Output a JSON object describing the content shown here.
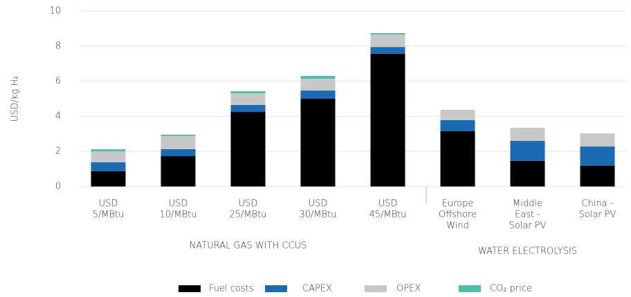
{
  "chart_data": {
    "type": "stacked_bar",
    "y_label": "USD/kg H₂",
    "groups": [
      {
        "name": "NATURAL GAS WITH CCUS",
        "categories": [
          [
            "USD",
            "5/MBtu"
          ],
          [
            "USD",
            "10/MBtu"
          ],
          [
            "USD",
            "25/MBtu"
          ],
          [
            "USD",
            "30/MBtu"
          ],
          [
            "USD",
            "45/MBtu"
          ]
        ]
      },
      {
        "name": "WATER ELECTROLYSIS",
        "categories": [
          [
            "Europe",
            "Offshore",
            "Wind"
          ],
          [
            "Middle",
            "East -",
            "Solar PV"
          ],
          [
            "China -",
            "Solar PV"
          ]
        ]
      }
    ],
    "series": [
      {
        "name": "Fuel costs",
        "color": "#000000",
        "values": [
          0.87,
          1.73,
          4.25,
          5.0,
          7.56,
          3.15,
          1.46,
          1.18
        ]
      },
      {
        "name": "CAPEX",
        "color": "#1a6ab4",
        "values": [
          0.51,
          0.4,
          0.4,
          0.47,
          0.39,
          0.63,
          1.14,
          1.1
        ]
      },
      {
        "name": "OPEX",
        "color": "#c8c8c8",
        "values": [
          0.62,
          0.74,
          0.66,
          0.67,
          0.71,
          0.59,
          0.75,
          0.75
        ]
      },
      {
        "name": "CO₂ price",
        "color": "#4dbfa8",
        "values": [
          0.12,
          0.08,
          0.12,
          0.16,
          0.08,
          0,
          0,
          0
        ]
      }
    ],
    "ylim": [
      0,
      10
    ],
    "yticks": [
      0,
      2,
      4,
      6,
      8,
      10
    ],
    "grid": true
  }
}
